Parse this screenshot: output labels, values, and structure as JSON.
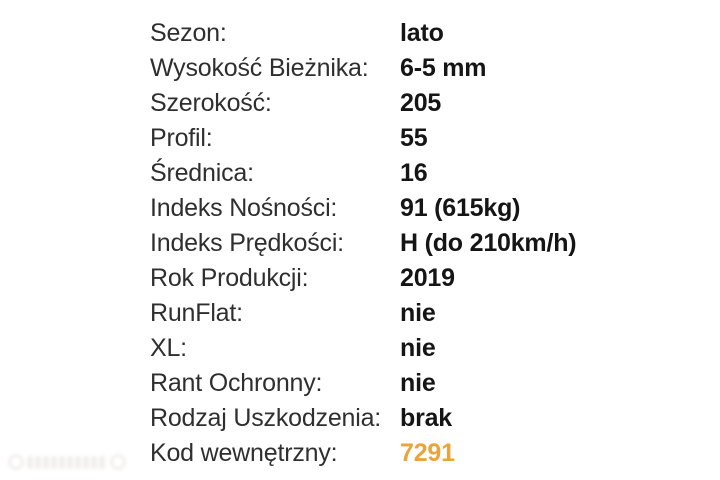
{
  "spec_table": {
    "rows": [
      {
        "label": "Sezon:",
        "value": "lato",
        "highlighted": false
      },
      {
        "label": "Wysokość Bieżnika:",
        "value": "6-5 mm",
        "highlighted": false
      },
      {
        "label": "Szerokość:",
        "value": "205",
        "highlighted": false
      },
      {
        "label": "Profil:",
        "value": "55",
        "highlighted": false
      },
      {
        "label": "Średnica:",
        "value": "16",
        "highlighted": false
      },
      {
        "label": "Indeks Nośności:",
        "value": "91 (615kg)",
        "highlighted": false
      },
      {
        "label": "Indeks Prędkości:",
        "value": "H (do 210km/h)",
        "highlighted": false
      },
      {
        "label": "Rok Produkcji:",
        "value": "2019",
        "highlighted": false
      },
      {
        "label": "RunFlat:",
        "value": "nie",
        "highlighted": false
      },
      {
        "label": "XL:",
        "value": "nie",
        "highlighted": false
      },
      {
        "label": "Rant Ochronny:",
        "value": "nie",
        "highlighted": false
      },
      {
        "label": "Rodzaj Uszkodzenia:",
        "value": "brak",
        "highlighted": false
      },
      {
        "label": "Kod wewnętrzny:",
        "value": "7291",
        "highlighted": true
      }
    ]
  },
  "colors": {
    "background": "#ffffff",
    "label_text": "#2f2f2f",
    "value_text": "#151515",
    "highlight_value": "#e9a53c",
    "watermark": "#efedea"
  }
}
